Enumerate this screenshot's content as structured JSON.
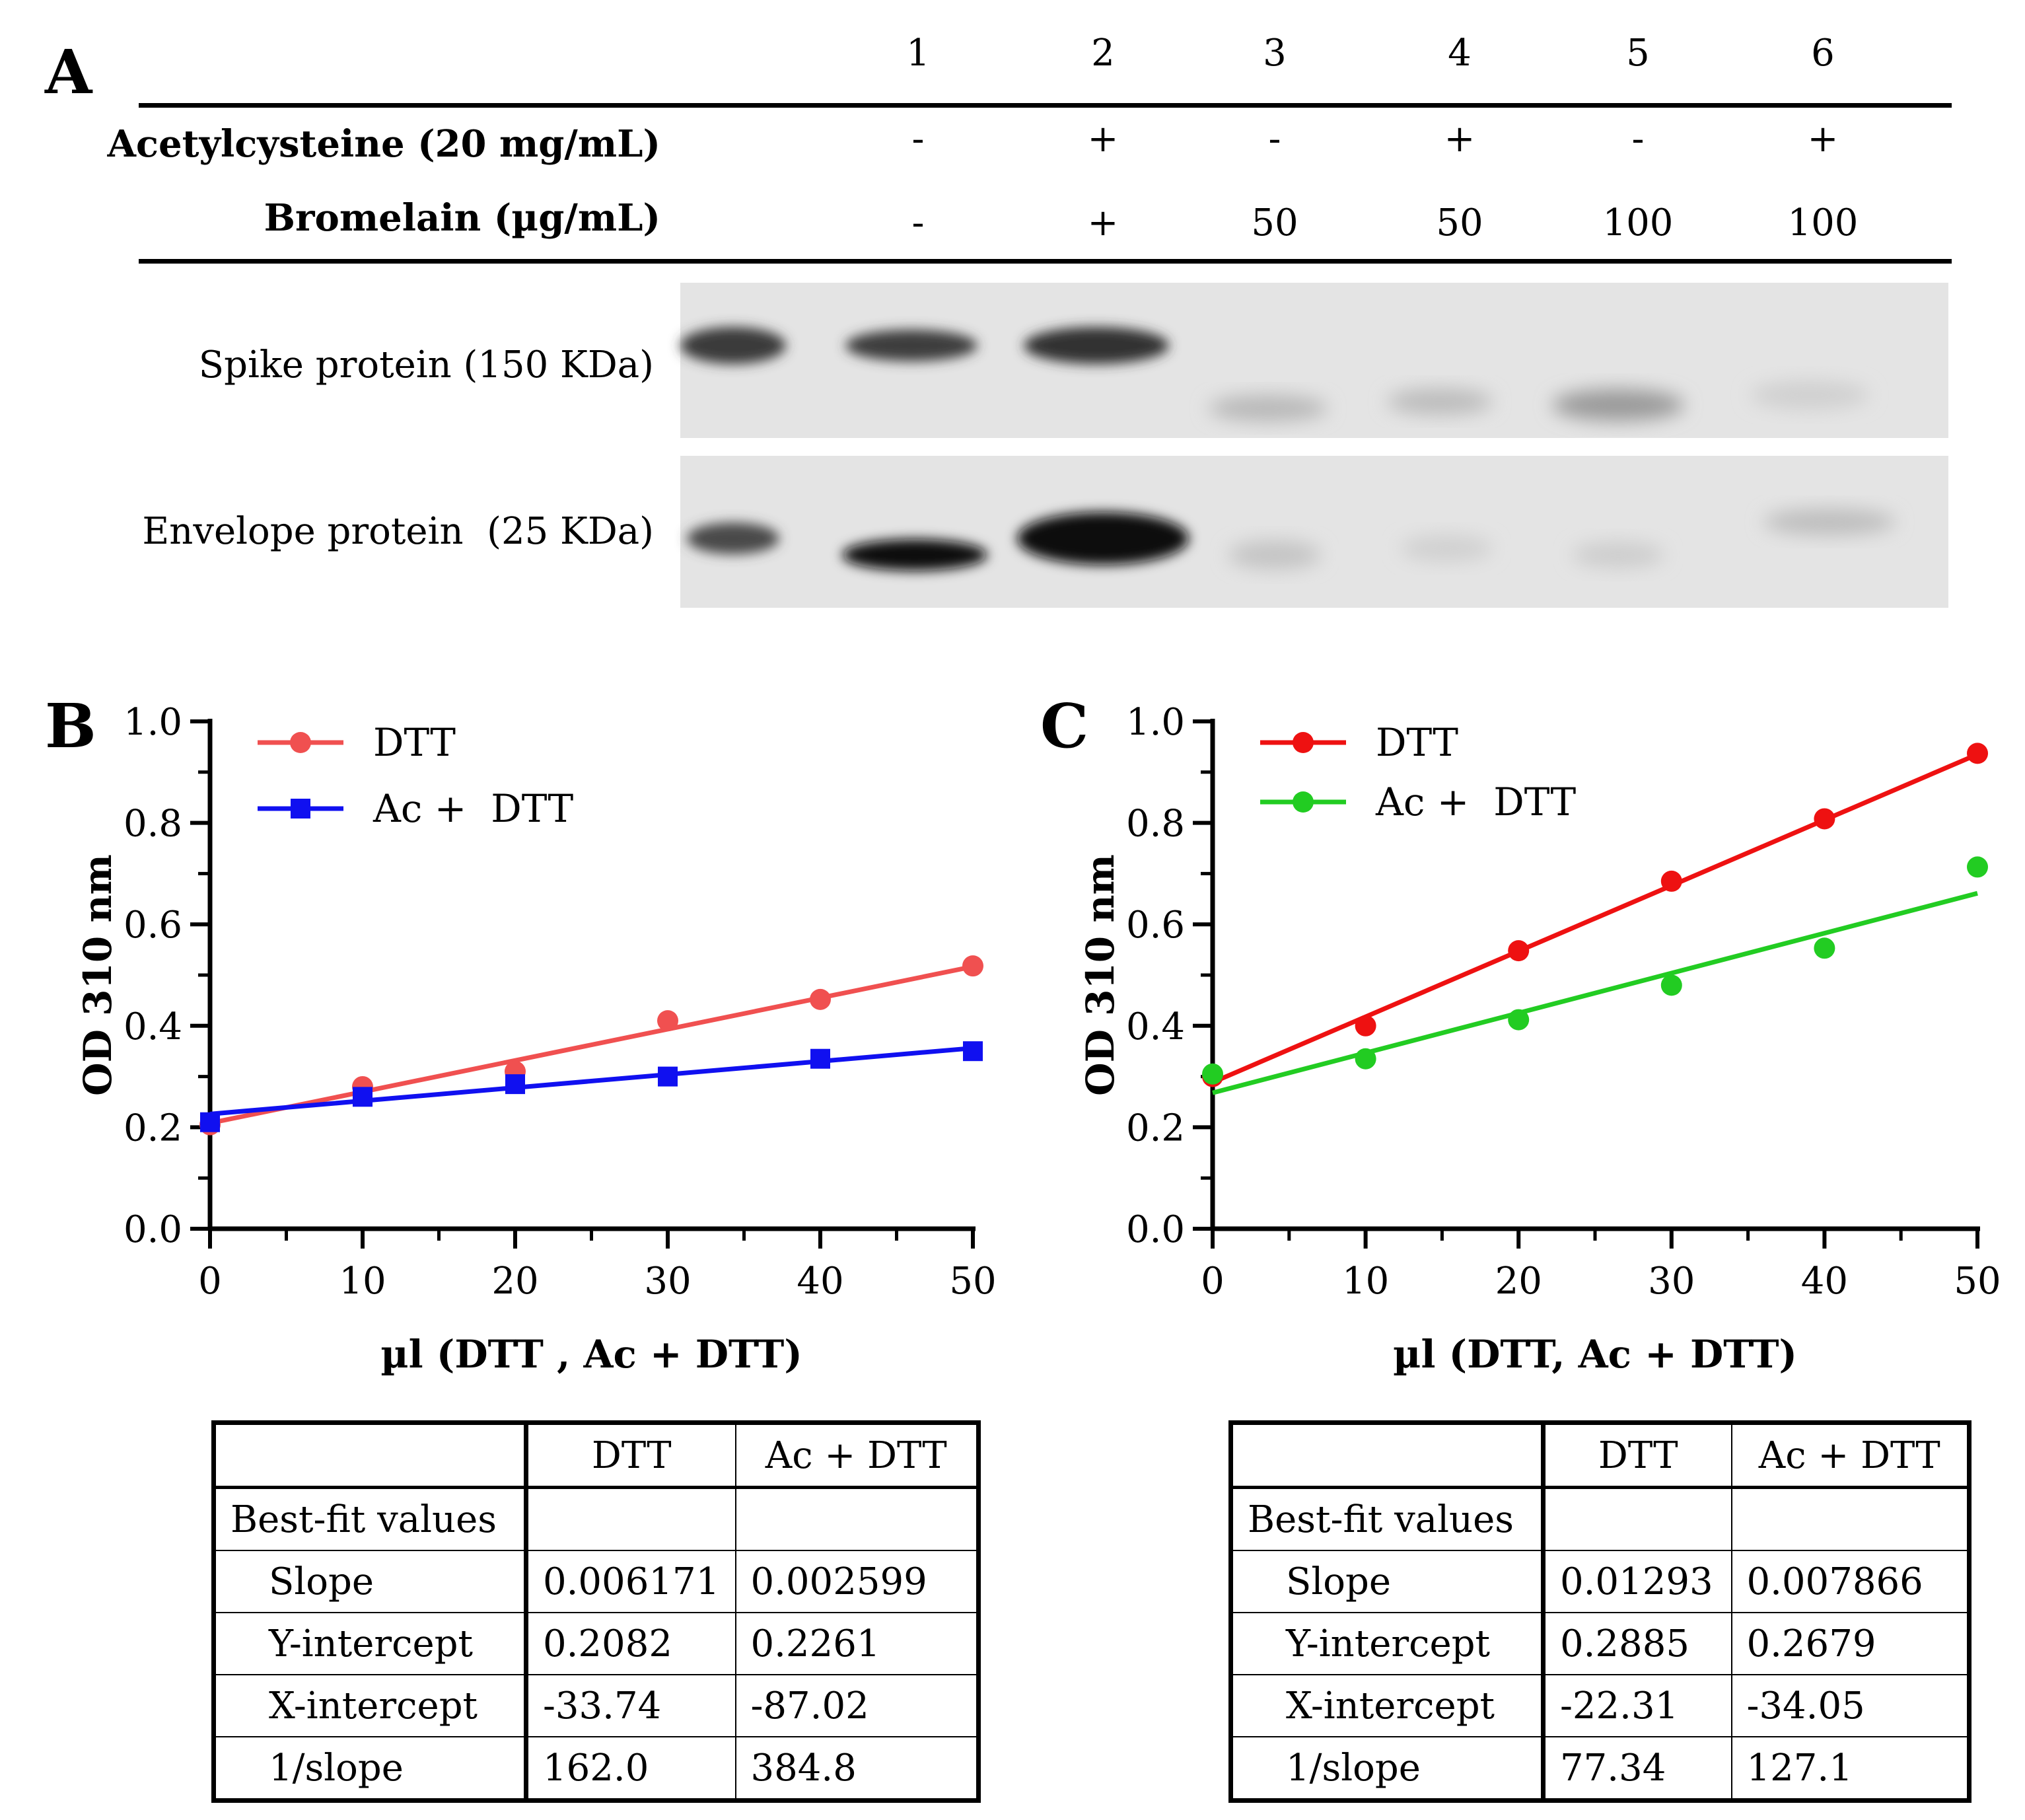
{
  "panelA": {
    "letter": "A",
    "lanes": [
      "1",
      "2",
      "3",
      "4",
      "5",
      "6"
    ],
    "row1": {
      "label": "Acetylcysteine (20 mg/mL)",
      "values": [
        "-",
        "+",
        "-",
        "+",
        "-",
        "+"
      ]
    },
    "row2": {
      "label": "Bromelain (µg/mL)",
      "values": [
        "-",
        "+",
        "50",
        "50",
        "100",
        "100"
      ]
    },
    "blots": [
      {
        "label": "Spike protein (150 KDa)"
      },
      {
        "label": "Envelope protein  (25 KDa)"
      }
    ]
  },
  "chart_data": [
    {
      "panel": "B",
      "type": "scatter",
      "xlabel": "µl (DTT , Ac +  DTT)",
      "ylabel": "OD 310 nm",
      "xlim": [
        0,
        50
      ],
      "ylim": [
        0,
        1.0
      ],
      "xticks": [
        "0",
        "10",
        "20",
        "30",
        "40",
        "50"
      ],
      "yticks": [
        "0.0",
        "0.2",
        "0.4",
        "0.6",
        "0.8",
        "1.0"
      ],
      "legend_position": "top-left",
      "series": [
        {
          "name": "DTT",
          "marker": "circle",
          "color": "#f05050",
          "x": [
            0,
            10,
            20,
            30,
            40,
            50
          ],
          "y": [
            0.205,
            0.28,
            0.31,
            0.41,
            0.452,
            0.518
          ],
          "fit": {
            "slope": 0.006171,
            "intercept": 0.2082
          }
        },
        {
          "name": "Ac +  DTT",
          "marker": "square",
          "color": "#1010f0",
          "x": [
            0,
            10,
            20,
            30,
            40,
            50
          ],
          "y": [
            0.21,
            0.26,
            0.285,
            0.3,
            0.335,
            0.35
          ],
          "fit": {
            "slope": 0.002599,
            "intercept": 0.2261
          }
        }
      ],
      "table": {
        "headers": [
          "",
          "DTT",
          "Ac +  DTT"
        ],
        "rows": [
          [
            "Best-fit values",
            "",
            ""
          ],
          [
            "Slope",
            "0.006171",
            "0.002599"
          ],
          [
            "Y-intercept",
            "0.2082",
            "0.2261"
          ],
          [
            "X-intercept",
            "-33.74",
            "-87.02"
          ],
          [
            "1/slope",
            "162.0",
            "384.8"
          ]
        ]
      }
    },
    {
      "panel": "C",
      "type": "scatter",
      "xlabel": "µl (DTT, Ac + DTT)",
      "ylabel": "OD 310 nm",
      "xlim": [
        0,
        50
      ],
      "ylim": [
        0,
        1.0
      ],
      "xticks": [
        "0",
        "10",
        "20",
        "30",
        "40",
        "50"
      ],
      "yticks": [
        "0.0",
        "0.2",
        "0.4",
        "0.6",
        "0.8",
        "1.0"
      ],
      "legend_position": "top-left",
      "series": [
        {
          "name": "DTT",
          "marker": "circle",
          "color": "#ee1111",
          "x": [
            0,
            10,
            20,
            30,
            40,
            50
          ],
          "y": [
            0.3,
            0.4,
            0.548,
            0.685,
            0.808,
            0.937
          ],
          "fit": {
            "slope": 0.01293,
            "intercept": 0.2885
          }
        },
        {
          "name": "Ac +  DTT",
          "marker": "circle",
          "color": "#22cc22",
          "x": [
            0,
            10,
            20,
            30,
            40,
            50
          ],
          "y": [
            0.305,
            0.335,
            0.412,
            0.48,
            0.553,
            0.713
          ],
          "fit": {
            "slope": 0.007866,
            "intercept": 0.2679
          }
        }
      ],
      "table": {
        "headers": [
          "",
          "DTT",
          "Ac + DTT"
        ],
        "rows": [
          [
            "Best-fit values",
            "",
            ""
          ],
          [
            "Slope",
            "0.01293",
            "0.007866"
          ],
          [
            "Y-intercept",
            "0.2885",
            "0.2679"
          ],
          [
            "X-intercept",
            "-22.31",
            "-34.05"
          ],
          [
            "1/slope",
            "77.34",
            "127.1"
          ]
        ]
      }
    }
  ]
}
